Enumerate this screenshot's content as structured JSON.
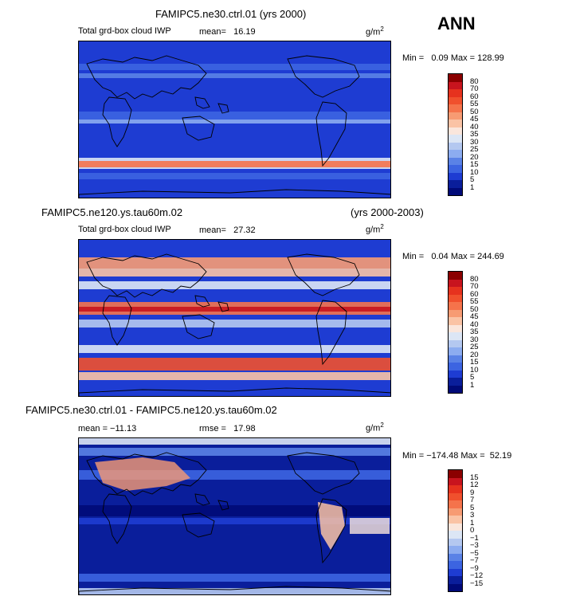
{
  "season": "ANN",
  "panels": [
    {
      "case": "FAMIPC5.ne30.ctrl.01 (yrs 2000)",
      "years": "",
      "variable": "Total grd-box cloud IWP",
      "stat1": "mean=   16.19",
      "stat2": "",
      "units": "g/m",
      "units_exp": "2",
      "minmax": "Min =   0.09 Max = 128.99",
      "levels": [
        "80",
        "70",
        "60",
        "55",
        "50",
        "45",
        "40",
        "35",
        "30",
        "25",
        "20",
        "15",
        "10",
        "5",
        "1"
      ],
      "colors": [
        "#8b0000",
        "#c8141e",
        "#e6321e",
        "#f0502d",
        "#f5734b",
        "#f79b73",
        "#fac3a5",
        "#fae6dc",
        "#dce6f5",
        "#b4c8f0",
        "#8cacf0",
        "#5a82e6",
        "#3c64e1",
        "#1e3cd2",
        "#0a1e9b",
        "#000a78"
      ]
    },
    {
      "case": "FAMIPC5.ne120.ys.tau60m.02",
      "years": "(yrs 2000-2003)",
      "variable": "Total grd-box cloud IWP",
      "stat1": "mean=   27.32",
      "stat2": "",
      "units": "g/m",
      "units_exp": "2",
      "minmax": "Min =   0.04 Max = 244.69",
      "levels": [
        "80",
        "70",
        "60",
        "55",
        "50",
        "45",
        "40",
        "35",
        "30",
        "25",
        "20",
        "15",
        "10",
        "5",
        "1"
      ],
      "colors": [
        "#8b0000",
        "#c8141e",
        "#e6321e",
        "#f0502d",
        "#f5734b",
        "#f79b73",
        "#fac3a5",
        "#fae6dc",
        "#dce6f5",
        "#b4c8f0",
        "#8cacf0",
        "#5a82e6",
        "#3c64e1",
        "#1e3cd2",
        "#0a1e9b",
        "#000a78"
      ]
    },
    {
      "case": "FAMIPC5.ne30.ctrl.01 - FAMIPC5.ne120.ys.tau60m.02",
      "years": "",
      "variable": "",
      "stat1": "mean = −11.13",
      "stat2": "rmse =   17.98",
      "units": "g/m",
      "units_exp": "2",
      "minmax": "Min = −174.48 Max =  52.19",
      "levels": [
        "15",
        "12",
        "9",
        "7",
        "5",
        "3",
        "1",
        "0",
        "−1",
        "−3",
        "−5",
        "−7",
        "−9",
        "−12",
        "−15"
      ],
      "colors": [
        "#8b0000",
        "#c8141e",
        "#e6321e",
        "#f0502d",
        "#f5734b",
        "#f79b73",
        "#fac3a5",
        "#fae6dc",
        "#dce6f5",
        "#b4c8f0",
        "#8cacf0",
        "#5a82e6",
        "#3c64e1",
        "#1e3cd2",
        "#0a1e9b",
        "#000a78"
      ]
    }
  ]
}
